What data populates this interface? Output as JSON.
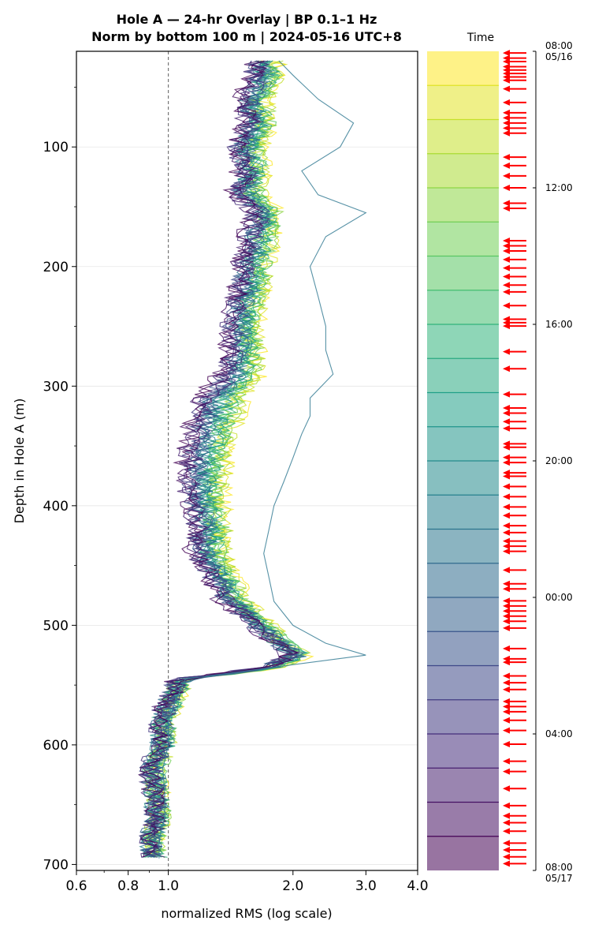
{
  "chart_data": {
    "type": "line",
    "title_lines": [
      "Hole A — 24-hr Overlay  |  BP 0.1–1 Hz",
      "Norm by bottom 100 m  |  2024-05-16 UTC+8"
    ],
    "xlabel": "normalized RMS  (log scale)",
    "ylabel": "Depth in Hole A (m)",
    "x_scale": "log",
    "xlim": [
      0.6,
      4.0
    ],
    "ylim": [
      705,
      20
    ],
    "y_inverted": true,
    "x_ticks": [
      0.6,
      0.8,
      1.0,
      2.0,
      3.0,
      4.0
    ],
    "x_tick_labels": [
      "0.6",
      "0.8",
      "1.0",
      "2.0",
      "3.0",
      "4.0"
    ],
    "y_ticks": [
      100,
      200,
      300,
      400,
      500,
      600,
      700
    ],
    "y_tick_labels": [
      "100",
      "200",
      "300",
      "400",
      "500",
      "600",
      "700"
    ],
    "grid": "horizontal",
    "reference_line_x": 1.0,
    "colormap": "viridis (reversed: early = yellow, late = purple)",
    "colorbar": {
      "title": "Time",
      "tick_labels": [
        "08:00\n05/16",
        "12:00",
        "16:00",
        "20:00",
        "00:00",
        "04:00",
        "08:00\n05/17"
      ],
      "tick_hours": [
        0,
        4,
        8,
        12,
        16,
        20,
        24
      ],
      "bands": 24,
      "arrow_color": "#ff0000",
      "arrow_hours": [
        0.05,
        0.2,
        0.3,
        0.45,
        0.55,
        0.65,
        0.75,
        0.85,
        1.1,
        1.5,
        1.8,
        1.95,
        2.1,
        2.25,
        2.4,
        3.1,
        3.35,
        3.65,
        4.0,
        4.45,
        4.6,
        5.55,
        5.7,
        5.85,
        6.1,
        6.35,
        6.6,
        6.85,
        7.05,
        7.45,
        7.85,
        7.95,
        8.05,
        8.8,
        9.3,
        10.05,
        10.45,
        10.6,
        10.85,
        11.05,
        11.5,
        11.6,
        11.9,
        12.05,
        12.35,
        12.45,
        12.75,
        13.05,
        13.35,
        13.6,
        13.9,
        14.1,
        14.35,
        14.5,
        14.65,
        15.2,
        15.6,
        15.75,
        16.1,
        16.25,
        16.4,
        16.55,
        16.7,
        16.9,
        17.5,
        17.8,
        17.9,
        18.3,
        18.5,
        18.7,
        19.05,
        19.2,
        19.35,
        19.6,
        19.9,
        20.3,
        20.8,
        21.1,
        21.6,
        22.1,
        22.4,
        22.6,
        22.85,
        23.2,
        23.4,
        23.6,
        23.8
      ]
    },
    "series_profile": {
      "depth": [
        28,
        40,
        60,
        80,
        100,
        120,
        140,
        155,
        175,
        200,
        225,
        250,
        270,
        290,
        310,
        325,
        340,
        360,
        380,
        400,
        420,
        440,
        460,
        480,
        500,
        515,
        525,
        535,
        545,
        560,
        580,
        600,
        620,
        640,
        660,
        680,
        695
      ],
      "base_rms": [
        1.6,
        1.6,
        1.5,
        1.55,
        1.45,
        1.5,
        1.45,
        1.6,
        1.55,
        1.5,
        1.45,
        1.4,
        1.4,
        1.35,
        1.2,
        1.15,
        1.12,
        1.1,
        1.1,
        1.12,
        1.15,
        1.15,
        1.25,
        1.35,
        1.6,
        1.8,
        2.0,
        1.7,
        1.05,
        1.0,
        0.95,
        0.95,
        0.9,
        0.92,
        0.93,
        0.9,
        0.92
      ],
      "early_excess": [
        0.2,
        0.25,
        0.2,
        0.22,
        0.2,
        0.2,
        0.2,
        0.25,
        0.22,
        0.22,
        0.22,
        0.22,
        0.25,
        0.28,
        0.3,
        0.32,
        0.3,
        0.28,
        0.25,
        0.22,
        0.22,
        0.2,
        0.18,
        0.18,
        0.15,
        0.12,
        0.12,
        0.12,
        0.04,
        0.05,
        0.04,
        0.04,
        0.04,
        0.03,
        0.03,
        0.02,
        0.02
      ],
      "outlier_series": {
        "name_hint": "early teal trace",
        "x": [
          1.85,
          2.0,
          2.3,
          2.8,
          2.6,
          2.1,
          2.3,
          3.0,
          2.4,
          2.2,
          2.3,
          2.4,
          2.4,
          2.5,
          2.2,
          2.2,
          2.1,
          2.0,
          1.9,
          1.8,
          1.75,
          1.7,
          1.75,
          1.8,
          2.0,
          2.4,
          3.0,
          1.8,
          1.1,
          1.05,
          1.0,
          1.0,
          0.97,
          0.98,
          0.98,
          0.95,
          0.95
        ]
      },
      "series_count": 24
    }
  }
}
